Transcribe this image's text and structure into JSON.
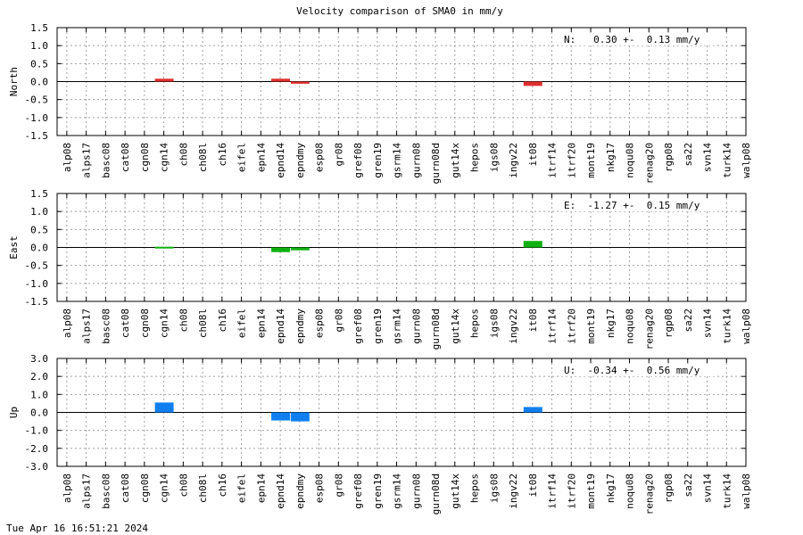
{
  "title": "Velocity comparison of SMA0 in mm/y",
  "timestamp": "Tue Apr 16 16:51:21 2024",
  "chart_data": [
    {
      "type": "bar",
      "ylabel": "North",
      "annotation": "N:   0.30 +-  0.13 mm/y",
      "color": "#e03030",
      "ylim": [
        -1.5,
        1.5
      ],
      "yticks": [
        -1.5,
        -1.0,
        -0.5,
        0.0,
        0.5,
        1.0,
        1.5
      ],
      "ytick_labels": [
        "-1.5",
        "-1.0",
        "-0.5",
        "0.0",
        "0.5",
        "1.0",
        "1.5"
      ],
      "grid": true,
      "categories": [
        "alp08",
        "alps17",
        "basc08",
        "cat08",
        "cgn08",
        "cgn14",
        "ch08",
        "ch08l",
        "ch16",
        "eifel",
        "epn14",
        "epnd14",
        "epndmy",
        "esp08",
        "gr08",
        "gref08",
        "gren19",
        "gsrm14",
        "gurn08",
        "gurn08d",
        "gut14x",
        "hepos",
        "igs08",
        "ingv22",
        "it08",
        "itrf14",
        "itrf20",
        "mont19",
        "nkg17",
        "noqu08",
        "renag20",
        "rgp08",
        "sa22",
        "svn14",
        "turk14",
        "walp08"
      ],
      "values": [
        0,
        0,
        0,
        0,
        0,
        0.08,
        0,
        0,
        0,
        0,
        0,
        0.08,
        -0.06,
        0,
        0,
        0,
        0,
        0,
        0,
        0,
        0,
        0,
        0,
        0,
        -0.12,
        0,
        0,
        0,
        0,
        0,
        0,
        0,
        0,
        0,
        0,
        0
      ]
    },
    {
      "type": "bar",
      "ylabel": "East",
      "annotation": "E:  -1.27 +-  0.15 mm/y",
      "color": "#10b010",
      "ylim": [
        -1.5,
        1.5
      ],
      "yticks": [
        -1.5,
        -1.0,
        -0.5,
        0.0,
        0.5,
        1.0,
        1.5
      ],
      "ytick_labels": [
        "-1.5",
        "-1.0",
        "-0.5",
        "0.0",
        "0.5",
        "1.0",
        "1.5"
      ],
      "grid": true,
      "categories": [
        "alp08",
        "alps17",
        "basc08",
        "cat08",
        "cgn08",
        "cgn14",
        "ch08",
        "ch08l",
        "ch16",
        "eifel",
        "epn14",
        "epnd14",
        "epndmy",
        "esp08",
        "gr08",
        "gref08",
        "gren19",
        "gsrm14",
        "gurn08",
        "gurn08d",
        "gut14x",
        "hepos",
        "igs08",
        "ingv22",
        "it08",
        "itrf14",
        "itrf20",
        "mont19",
        "nkg17",
        "noqu08",
        "renag20",
        "rgp08",
        "sa22",
        "svn14",
        "turk14",
        "walp08"
      ],
      "values": [
        0,
        0,
        0,
        0,
        0,
        0.02,
        0,
        0,
        0,
        0,
        0,
        -0.13,
        -0.08,
        0,
        0,
        0,
        0,
        0,
        0,
        0,
        0,
        0,
        0,
        0,
        0.18,
        0,
        0,
        0,
        0,
        0,
        0,
        0,
        0,
        0,
        0,
        0
      ]
    },
    {
      "type": "bar",
      "ylabel": "Up",
      "annotation": "U:  -0.34 +-  0.56 mm/y",
      "color": "#1080f0",
      "ylim": [
        -3.0,
        3.0
      ],
      "yticks": [
        -3.0,
        -2.0,
        -1.0,
        0.0,
        1.0,
        2.0,
        3.0
      ],
      "ytick_labels": [
        "-3.0",
        "-2.0",
        "-1.0",
        "0.0",
        "1.0",
        "2.0",
        "3.0"
      ],
      "grid": true,
      "categories": [
        "alp08",
        "alps17",
        "basc08",
        "cat08",
        "cgn08",
        "cgn14",
        "ch08",
        "ch08l",
        "ch16",
        "eifel",
        "epn14",
        "epnd14",
        "epndmy",
        "esp08",
        "gr08",
        "gref08",
        "gren19",
        "gsrm14",
        "gurn08",
        "gurn08d",
        "gut14x",
        "hepos",
        "igs08",
        "ingv22",
        "it08",
        "itrf14",
        "itrf20",
        "mont19",
        "nkg17",
        "noqu08",
        "renag20",
        "rgp08",
        "sa22",
        "svn14",
        "turk14",
        "walp08"
      ],
      "values": [
        0,
        0,
        0,
        0,
        0,
        0.55,
        0,
        0,
        0,
        0,
        0,
        -0.45,
        -0.5,
        0,
        0,
        0,
        0,
        0,
        0,
        0,
        0,
        0,
        0,
        0,
        0.3,
        0,
        0,
        0,
        0,
        0,
        0,
        0,
        0,
        0,
        0,
        0
      ]
    }
  ]
}
